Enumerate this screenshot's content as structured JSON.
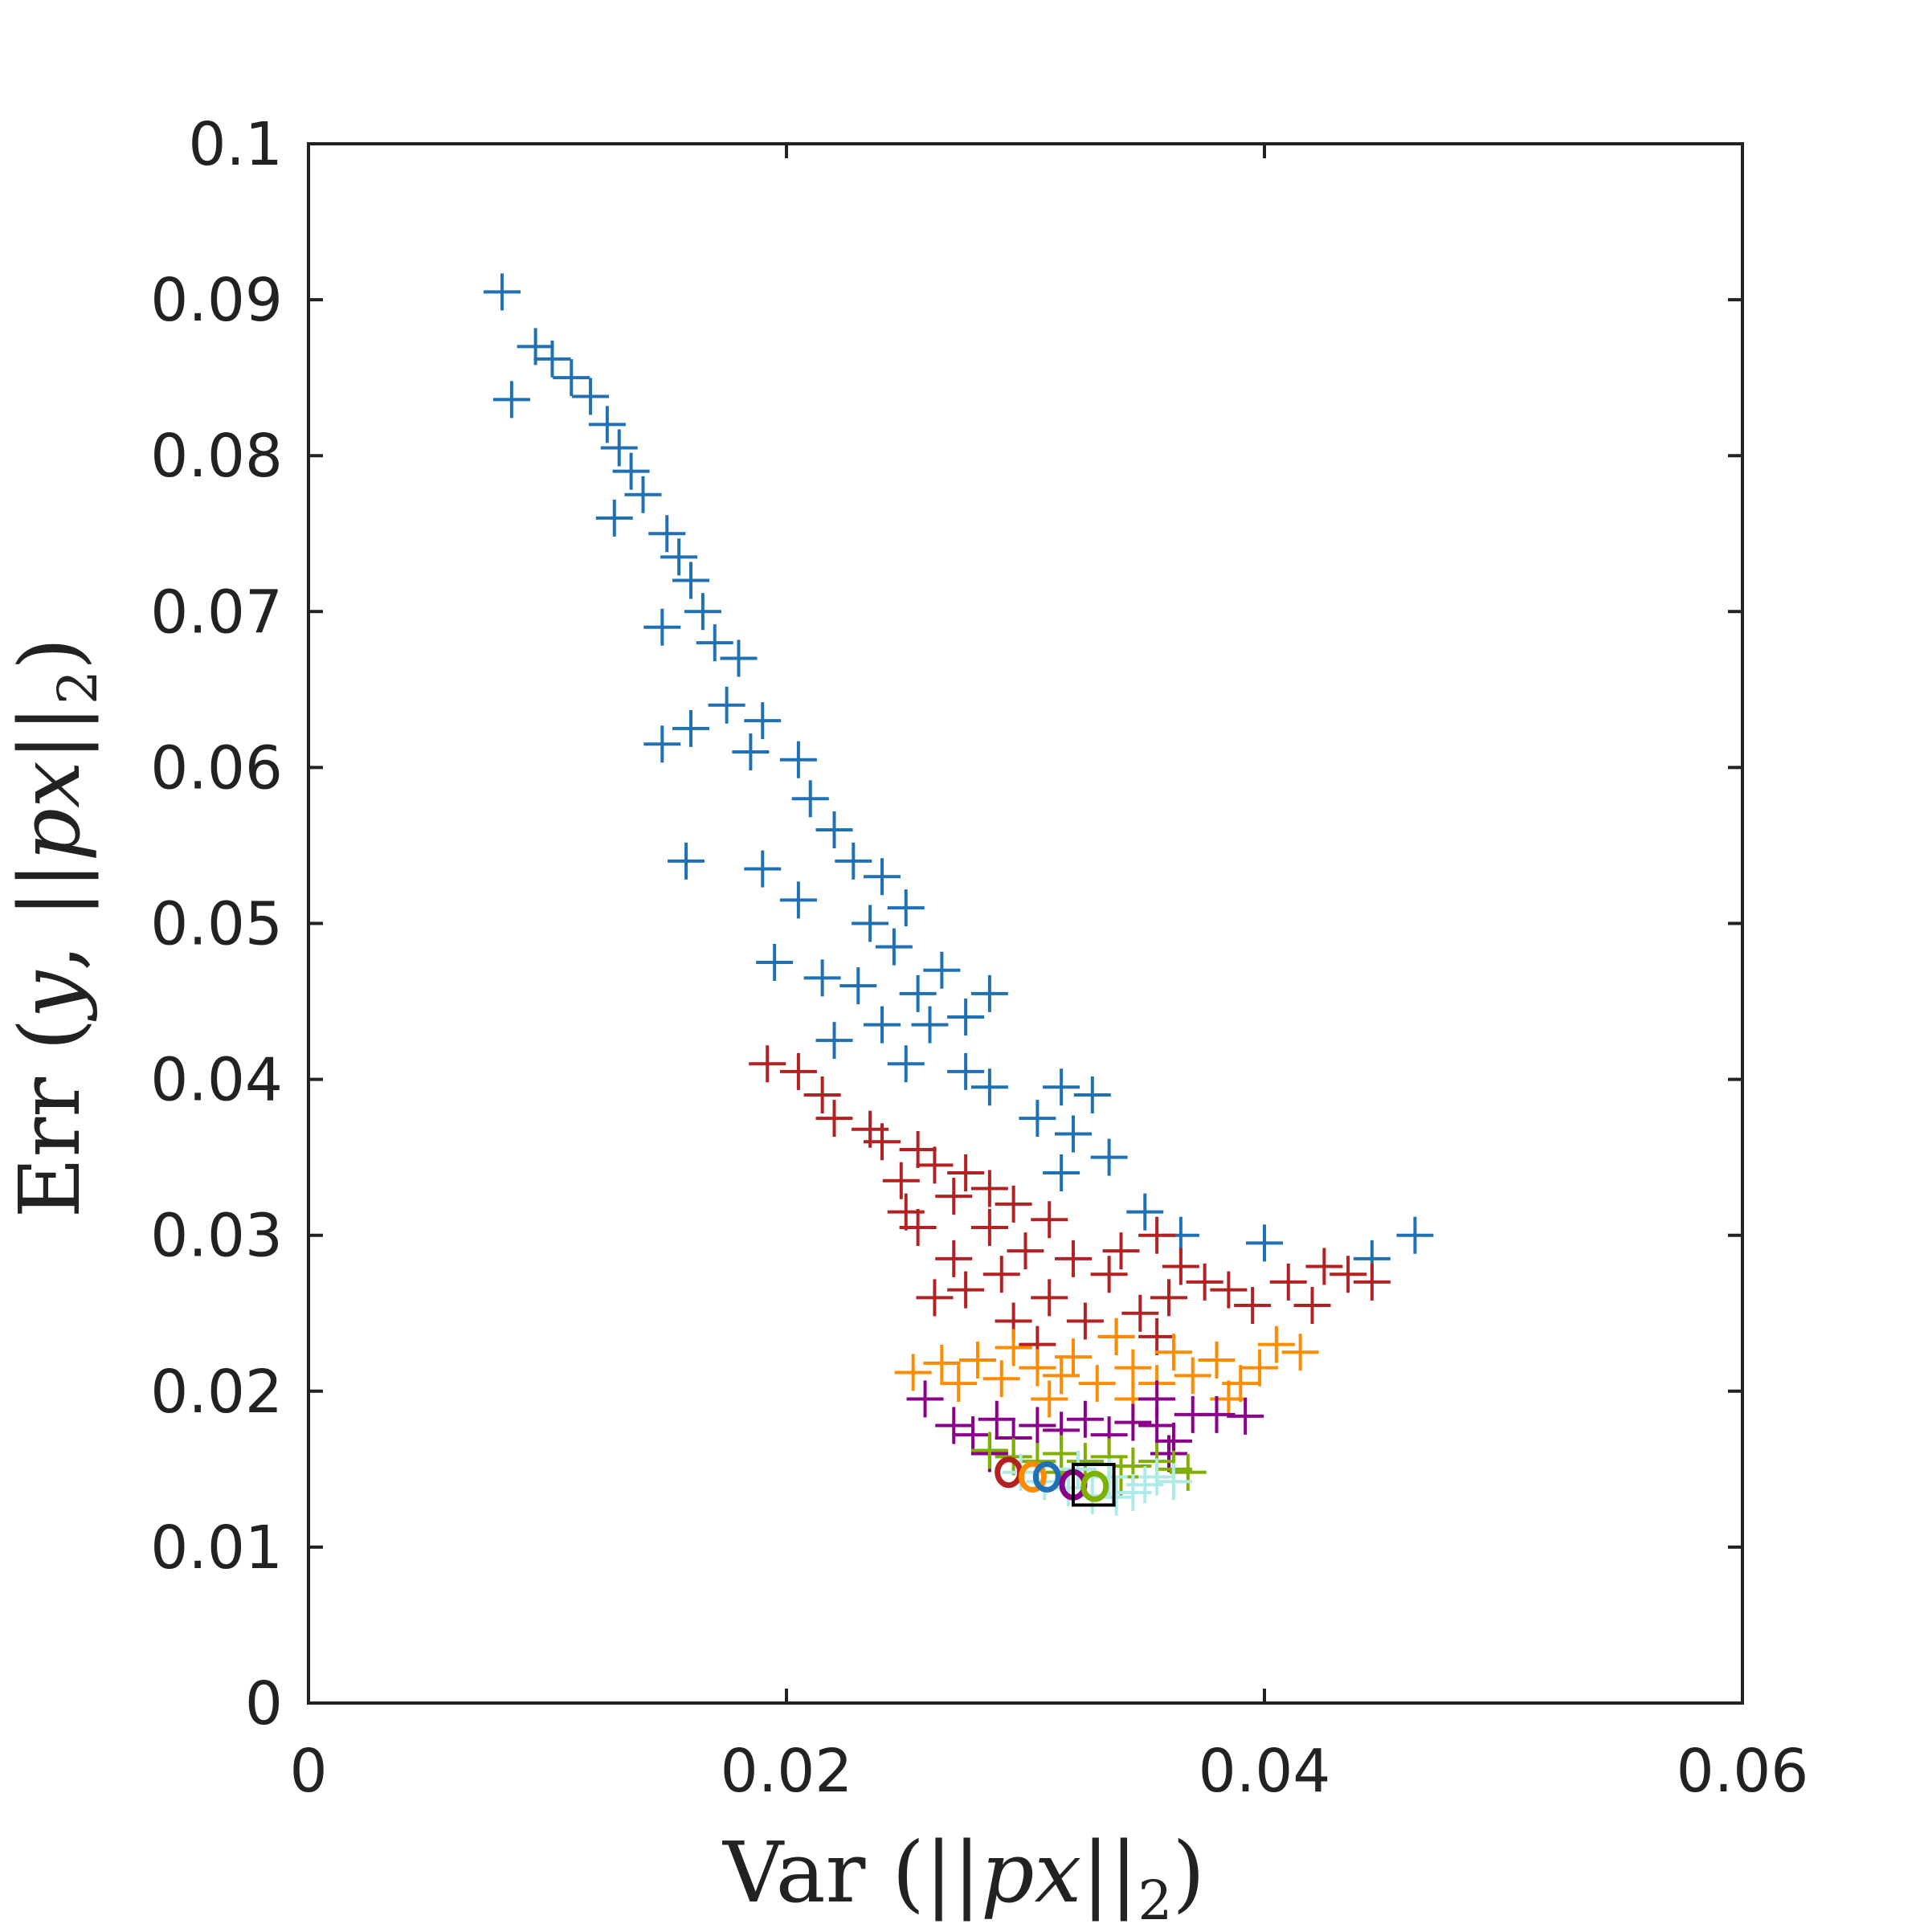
{
  "chart_data": {
    "type": "scatter",
    "title": "",
    "xlabel": {
      "prefix": "Var (||",
      "var": "px",
      "mid": "||",
      "sub": "2",
      "suffix": ")"
    },
    "ylabel": {
      "prefix": "Err (",
      "var1": "y",
      "comma": ", ||",
      "var2": "px",
      "mid": "||",
      "sub": "2",
      "suffix": ")"
    },
    "xlim": [
      0,
      0.06
    ],
    "ylim": [
      0,
      0.1
    ],
    "xticks": [
      0,
      0.02,
      0.04,
      0.06
    ],
    "xtick_labels": [
      "0",
      "0.02",
      "0.04",
      "0.06"
    ],
    "yticks": [
      0,
      0.01,
      0.02,
      0.03,
      0.04,
      0.05,
      0.06,
      0.07,
      0.08,
      0.09,
      0.1
    ],
    "ytick_labels": [
      "0",
      "0.01",
      "0.02",
      "0.03",
      "0.04",
      "0.05",
      "0.06",
      "0.07",
      "0.08",
      "0.09",
      "0.1"
    ],
    "grid": false,
    "series": [
      {
        "name": "blue",
        "color": "#2070b4",
        "marker": "+",
        "points": [
          [
            0.0081,
            0.0905
          ],
          [
            0.0085,
            0.0836
          ],
          [
            0.0095,
            0.087
          ],
          [
            0.0102,
            0.0862
          ],
          [
            0.011,
            0.085
          ],
          [
            0.0118,
            0.0838
          ],
          [
            0.0125,
            0.082
          ],
          [
            0.013,
            0.0805
          ],
          [
            0.0135,
            0.079
          ],
          [
            0.014,
            0.0775
          ],
          [
            0.0128,
            0.076
          ],
          [
            0.015,
            0.075
          ],
          [
            0.0155,
            0.0735
          ],
          [
            0.016,
            0.072
          ],
          [
            0.0165,
            0.07
          ],
          [
            0.0148,
            0.069
          ],
          [
            0.017,
            0.068
          ],
          [
            0.018,
            0.067
          ],
          [
            0.0175,
            0.064
          ],
          [
            0.019,
            0.063
          ],
          [
            0.0185,
            0.061
          ],
          [
            0.0205,
            0.0605
          ],
          [
            0.0148,
            0.0615
          ],
          [
            0.016,
            0.0625
          ],
          [
            0.021,
            0.058
          ],
          [
            0.022,
            0.056
          ],
          [
            0.0228,
            0.054
          ],
          [
            0.024,
            0.053
          ],
          [
            0.0158,
            0.054
          ],
          [
            0.019,
            0.0535
          ],
          [
            0.0205,
            0.0515
          ],
          [
            0.025,
            0.051
          ],
          [
            0.0235,
            0.05
          ],
          [
            0.0245,
            0.0485
          ],
          [
            0.0195,
            0.0475
          ],
          [
            0.0215,
            0.0465
          ],
          [
            0.023,
            0.046
          ],
          [
            0.0255,
            0.0455
          ],
          [
            0.0265,
            0.047
          ],
          [
            0.0285,
            0.0455
          ],
          [
            0.024,
            0.0435
          ],
          [
            0.026,
            0.0435
          ],
          [
            0.0275,
            0.044
          ],
          [
            0.022,
            0.0425
          ],
          [
            0.025,
            0.041
          ],
          [
            0.0275,
            0.0405
          ],
          [
            0.0285,
            0.0395
          ],
          [
            0.0315,
            0.0395
          ],
          [
            0.0328,
            0.039
          ],
          [
            0.0305,
            0.0375
          ],
          [
            0.032,
            0.0365
          ],
          [
            0.0335,
            0.035
          ],
          [
            0.0315,
            0.034
          ],
          [
            0.035,
            0.0315
          ],
          [
            0.0365,
            0.03
          ],
          [
            0.04,
            0.0295
          ],
          [
            0.0445,
            0.0285
          ],
          [
            0.0463,
            0.03
          ]
        ]
      },
      {
        "name": "red",
        "color": "#b22222",
        "marker": "+",
        "points": [
          [
            0.0192,
            0.041
          ],
          [
            0.0205,
            0.0405
          ],
          [
            0.0215,
            0.039
          ],
          [
            0.022,
            0.0375
          ],
          [
            0.0235,
            0.0368
          ],
          [
            0.024,
            0.036
          ],
          [
            0.0255,
            0.0355
          ],
          [
            0.0262,
            0.0345
          ],
          [
            0.0248,
            0.0335
          ],
          [
            0.0275,
            0.034
          ],
          [
            0.0285,
            0.033
          ],
          [
            0.027,
            0.0325
          ],
          [
            0.0295,
            0.032
          ],
          [
            0.031,
            0.031
          ],
          [
            0.0285,
            0.0305
          ],
          [
            0.025,
            0.0315
          ],
          [
            0.0255,
            0.0305
          ],
          [
            0.027,
            0.0285
          ],
          [
            0.0262,
            0.026
          ],
          [
            0.0275,
            0.0265
          ],
          [
            0.029,
            0.0275
          ],
          [
            0.03,
            0.029
          ],
          [
            0.032,
            0.0285
          ],
          [
            0.0335,
            0.0275
          ],
          [
            0.034,
            0.029
          ],
          [
            0.0355,
            0.03
          ],
          [
            0.0365,
            0.028
          ],
          [
            0.0375,
            0.027
          ],
          [
            0.036,
            0.026
          ],
          [
            0.0348,
            0.025
          ],
          [
            0.0385,
            0.0265
          ],
          [
            0.0395,
            0.0255
          ],
          [
            0.041,
            0.027
          ],
          [
            0.0425,
            0.028
          ],
          [
            0.0435,
            0.0275
          ],
          [
            0.0445,
            0.027
          ],
          [
            0.042,
            0.0255
          ],
          [
            0.031,
            0.026
          ],
          [
            0.0325,
            0.0245
          ],
          [
            0.0295,
            0.0245
          ],
          [
            0.0305,
            0.023
          ],
          [
            0.0338,
            0.0235
          ],
          [
            0.0355,
            0.0235
          ]
        ]
      },
      {
        "name": "orange",
        "color": "#ff8c00",
        "marker": "+",
        "points": [
          [
            0.0253,
            0.0212
          ],
          [
            0.0265,
            0.0218
          ],
          [
            0.0272,
            0.0205
          ],
          [
            0.028,
            0.022
          ],
          [
            0.029,
            0.0208
          ],
          [
            0.0295,
            0.0228
          ],
          [
            0.0305,
            0.0215
          ],
          [
            0.0315,
            0.021
          ],
          [
            0.032,
            0.0222
          ],
          [
            0.033,
            0.0205
          ],
          [
            0.0338,
            0.0235
          ],
          [
            0.0345,
            0.0215
          ],
          [
            0.0355,
            0.0205
          ],
          [
            0.0362,
            0.0225
          ],
          [
            0.037,
            0.021
          ],
          [
            0.038,
            0.022
          ],
          [
            0.039,
            0.0205
          ],
          [
            0.0398,
            0.0215
          ],
          [
            0.0405,
            0.023
          ],
          [
            0.0415,
            0.0225
          ],
          [
            0.031,
            0.0195
          ],
          [
            0.0345,
            0.0195
          ],
          [
            0.0385,
            0.0195
          ]
        ]
      },
      {
        "name": "purple",
        "color": "#8b008b",
        "marker": "+",
        "points": [
          [
            0.0258,
            0.0195
          ],
          [
            0.027,
            0.0178
          ],
          [
            0.0278,
            0.0172
          ],
          [
            0.0288,
            0.0182
          ],
          [
            0.0295,
            0.017
          ],
          [
            0.0305,
            0.0178
          ],
          [
            0.0315,
            0.0175
          ],
          [
            0.0325,
            0.0182
          ],
          [
            0.0335,
            0.0172
          ],
          [
            0.0345,
            0.018
          ],
          [
            0.0355,
            0.0178
          ],
          [
            0.0362,
            0.0168
          ],
          [
            0.037,
            0.0185
          ],
          [
            0.038,
            0.0185
          ],
          [
            0.0392,
            0.0184
          ],
          [
            0.0355,
            0.0195
          ],
          [
            0.0285,
            0.016
          ],
          [
            0.036,
            0.016
          ]
        ]
      },
      {
        "name": "green",
        "color": "#7fb000",
        "marker": "+",
        "points": [
          [
            0.0285,
            0.0162
          ],
          [
            0.0295,
            0.0158
          ],
          [
            0.0305,
            0.0155
          ],
          [
            0.0315,
            0.016
          ],
          [
            0.0325,
            0.0155
          ],
          [
            0.0335,
            0.0158
          ],
          [
            0.0345,
            0.0152
          ],
          [
            0.0355,
            0.0155
          ],
          [
            0.0362,
            0.015
          ],
          [
            0.0368,
            0.0148
          ],
          [
            0.0315,
            0.0148
          ],
          [
            0.034,
            0.0145
          ]
        ]
      },
      {
        "name": "cyan",
        "color": "#aeeaea",
        "marker": "+",
        "points": [
          [
            0.0298,
            0.0148
          ],
          [
            0.0308,
            0.0142
          ],
          [
            0.0318,
            0.0138
          ],
          [
            0.0328,
            0.0133
          ],
          [
            0.0338,
            0.0132
          ],
          [
            0.0345,
            0.0135
          ],
          [
            0.035,
            0.014
          ],
          [
            0.0355,
            0.0145
          ],
          [
            0.0362,
            0.0142
          ],
          [
            0.0335,
            0.0145
          ],
          [
            0.0322,
            0.015
          ]
        ]
      }
    ],
    "highlights": [
      {
        "name": "red-circle",
        "color": "#b22222",
        "marker": "o",
        "x": 0.0293,
        "y": 0.0148
      },
      {
        "name": "orange-circle",
        "color": "#ff8c00",
        "marker": "o",
        "x": 0.0303,
        "y": 0.0145
      },
      {
        "name": "blue-circle",
        "color": "#2070b4",
        "marker": "o",
        "x": 0.0309,
        "y": 0.0145
      },
      {
        "name": "purple-circle",
        "color": "#8b008b",
        "marker": "o",
        "x": 0.032,
        "y": 0.014
      },
      {
        "name": "green-circle",
        "color": "#7fb000",
        "marker": "o",
        "x": 0.0329,
        "y": 0.0139
      }
    ],
    "box": {
      "color": "#000000",
      "x": [
        0.032,
        0.0337
      ],
      "y": [
        0.0127,
        0.0153
      ]
    }
  }
}
